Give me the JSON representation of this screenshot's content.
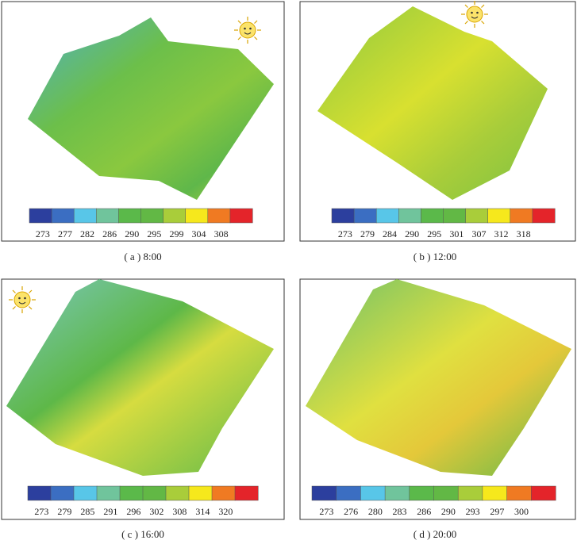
{
  "colormap": [
    "#2c3f9e",
    "#3b6ec2",
    "#58c6e8",
    "#70c49c",
    "#5bb94a",
    "#62b845",
    "#a9cd3a",
    "#f6e81c",
    "#f07a22",
    "#e4242a"
  ],
  "panels": [
    {
      "caption": "( a ) 8:00",
      "ticks": [
        273,
        277,
        282,
        286,
        290,
        295,
        299,
        304,
        308
      ]
    },
    {
      "caption": "( b ) 12:00",
      "ticks": [
        273,
        279,
        284,
        290,
        295,
        301,
        307,
        312,
        318
      ]
    },
    {
      "caption": "( c ) 16:00",
      "ticks": [
        273,
        279,
        285,
        291,
        296,
        302,
        308,
        314,
        320
      ]
    },
    {
      "caption": "( d ) 20:00",
      "ticks": [
        273,
        276,
        280,
        283,
        286,
        290,
        293,
        297,
        300
      ]
    }
  ]
}
